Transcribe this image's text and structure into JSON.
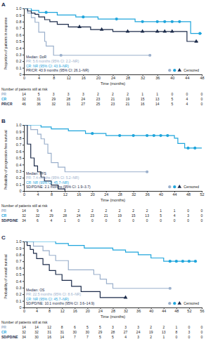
{
  "chart_data": [
    {
      "type": "line",
      "title": "A",
      "ylabel": "Proportion of patients in response",
      "xlabel": "Time (months)",
      "at_risk_title": "Number of patients still at risk",
      "median_title": "Median: DoR",
      "censor_label": "Censored",
      "legend": "bottom-right",
      "xlim": [
        0,
        48
      ],
      "xticks": [
        0,
        4,
        8,
        12,
        16,
        20,
        24,
        28,
        32,
        36,
        40,
        44,
        48
      ],
      "ylim": [
        0,
        1
      ],
      "yticks": [
        0,
        0.1,
        0.2,
        0.3,
        0.4,
        0.5,
        0.6,
        0.7,
        0.8,
        0.9,
        {
          "value": 1,
          "label": "1.0"
        }
      ],
      "series": [
        {
          "name": "PR",
          "color": "#9bb0cc",
          "marker": "circle",
          "annotation": "PR: 5.6 months (95% CI: 2.2–NR)",
          "x": [
            0,
            1,
            2,
            3,
            4,
            5.6,
            6,
            8,
            34
          ],
          "values": [
            1,
            0.93,
            0.86,
            0.79,
            0.64,
            0.5,
            0.43,
            0.29,
            0.29
          ],
          "censor_x": [
            10,
            34
          ],
          "censor_values": [
            0.29,
            0.29
          ],
          "at_risk": [
            14,
            5,
            3,
            3,
            3,
            2,
            2,
            2,
            1,
            1,
            0,
            0,
            0
          ]
        },
        {
          "name": "CR",
          "color": "#1fa5dc",
          "marker": "circle",
          "annotation": "CR: NR (95% CI: 43.9–NR)",
          "x": [
            0,
            2,
            4,
            9,
            14,
            20,
            30,
            45,
            48
          ],
          "values": [
            1,
            0.97,
            0.94,
            0.9,
            0.87,
            0.84,
            0.8,
            0.62,
            0.62
          ],
          "censor_x": [
            6,
            16,
            25,
            32,
            36,
            38,
            40,
            42,
            47.5
          ],
          "censor_values": [
            0.94,
            0.87,
            0.84,
            0.8,
            0.8,
            0.8,
            0.8,
            0.8,
            0.62
          ],
          "at_risk": [
            32,
            31,
            29,
            28,
            24,
            23,
            21,
            19,
            15,
            13,
            5,
            4,
            0
          ]
        },
        {
          "name": "PR/CR",
          "color": "#1c2b4a",
          "marker": "triangle",
          "annotation": "PR/CR: 43.9 months (95% CI: 26.1–NR)",
          "x": [
            0,
            1,
            2,
            3,
            4,
            5.6,
            7,
            9,
            12,
            18,
            24,
            44,
            47
          ],
          "values": [
            1,
            0.96,
            0.93,
            0.91,
            0.87,
            0.83,
            0.8,
            0.76,
            0.72,
            0.68,
            0.65,
            0.5,
            0.5
          ],
          "censor_x": [
            15,
            21,
            28,
            32,
            36,
            38,
            40,
            46.5
          ],
          "censor_values": [
            0.72,
            0.68,
            0.65,
            0.65,
            0.65,
            0.65,
            0.65,
            0.5
          ],
          "at_risk": [
            46,
            36,
            32,
            31,
            27,
            25,
            23,
            21,
            16,
            14,
            5,
            4,
            0
          ]
        }
      ]
    },
    {
      "type": "line",
      "title": "B",
      "ylabel": "Probability of progression-free survival",
      "xlabel": "Time (months)",
      "at_risk_title": "Number of patients still at risk",
      "median_title": "Median: PFS",
      "censor_label": "Censored",
      "legend": "bottom-right",
      "xlim": [
        0,
        52
      ],
      "xticks": [
        0,
        4,
        8,
        12,
        16,
        20,
        24,
        28,
        32,
        36,
        40,
        44,
        48,
        52
      ],
      "ylim": [
        0,
        1
      ],
      "yticks": [
        0,
        0.1,
        0.2,
        0.3,
        0.4,
        0.5,
        0.6,
        0.7,
        0.8,
        0.9,
        {
          "value": 1,
          "label": "1.0"
        }
      ],
      "series": [
        {
          "name": "PR",
          "color": "#9bb0cc",
          "marker": "circle",
          "annotation": "PR: 7.4 months (95% CI: 5.2–NR)",
          "x": [
            0,
            2,
            4,
            5,
            6,
            7,
            8,
            10,
            12,
            36
          ],
          "values": [
            1,
            0.93,
            0.86,
            0.79,
            0.71,
            0.57,
            0.43,
            0.36,
            0.29,
            0.29
          ],
          "censor_x": [
            36
          ],
          "censor_values": [
            0.29
          ],
          "at_risk": [
            14,
            9,
            4,
            3,
            2,
            2,
            2,
            2,
            2,
            2,
            1,
            1,
            0,
            0
          ]
        },
        {
          "name": "CR",
          "color": "#1fa5dc",
          "marker": "circle",
          "annotation": "CR: NR (95% CI: 45.7–NR)",
          "x": [
            0,
            5,
            8,
            13,
            18,
            24,
            44,
            45,
            47,
            52
          ],
          "values": [
            1,
            0.97,
            0.94,
            0.91,
            0.87,
            0.84,
            0.8,
            0.72,
            0.65,
            0.65
          ],
          "censor_x": [
            20,
            28,
            32,
            36,
            38,
            40,
            42,
            48,
            50
          ],
          "censor_values": [
            0.87,
            0.84,
            0.84,
            0.84,
            0.84,
            0.84,
            0.84,
            0.65,
            0.65
          ],
          "at_risk": [
            32,
            32,
            29,
            28,
            24,
            23,
            21,
            19,
            15,
            13,
            5,
            4,
            3,
            0
          ]
        },
        {
          "name": "SD/PD/NE",
          "color": "#1c2b4a",
          "marker": "triangle",
          "annotation": "SD/PD/NE: 2.1 months (95% CI: 1.9–3.7)",
          "x": [
            0,
            1,
            2,
            3,
            4,
            5,
            6,
            8,
            10,
            12
          ],
          "values": [
            1,
            0.71,
            0.5,
            0.38,
            0.29,
            0.21,
            0.15,
            0.09,
            0.03,
            0
          ],
          "censor_x": [],
          "censor_values": [],
          "at_risk": [
            34,
            6,
            4,
            1,
            0,
            0,
            0,
            0,
            0,
            0,
            0,
            0,
            0,
            0
          ]
        }
      ]
    },
    {
      "type": "line",
      "title": "C",
      "ylabel": "Probability of overall survival",
      "xlabel": "Time (months)",
      "at_risk_title": "Number of patients still at risk",
      "median_title": "Median: OS",
      "censor_label": "Censored",
      "legend": "bottom-right",
      "xlim": [
        0,
        56
      ],
      "xticks": [
        0,
        4,
        8,
        12,
        16,
        20,
        24,
        28,
        32,
        36,
        40,
        44,
        48,
        52,
        56
      ],
      "ylim": [
        0,
        1
      ],
      "yticks": [
        0,
        0.1,
        0.2,
        0.3,
        0.4,
        0.5,
        0.6,
        0.7,
        0.8,
        0.9,
        {
          "value": 1,
          "label": "1.0"
        }
      ],
      "series": [
        {
          "name": "PR",
          "color": "#9bb0cc",
          "marker": "circle",
          "annotation": "PR: 22.5 months (95% CI: 8.6–NR)",
          "x": [
            0,
            3,
            6,
            8,
            10,
            14,
            22,
            24,
            26,
            28,
            46
          ],
          "values": [
            1,
            0.93,
            0.86,
            0.79,
            0.71,
            0.57,
            0.5,
            0.43,
            0.36,
            0.29,
            0.29
          ],
          "censor_x": [
            46
          ],
          "censor_values": [
            0.29
          ],
          "at_risk": [
            14,
            14,
            12,
            8,
            6,
            5,
            5,
            3,
            3,
            3,
            2,
            2,
            1,
            0,
            0
          ]
        },
        {
          "name": "CR",
          "color": "#1fa5dc",
          "marker": "circle",
          "annotation": "CR: NR (95% CI: 45.7–NR)",
          "x": [
            0,
            10,
            14,
            19,
            28,
            32,
            36,
            40,
            44,
            54
          ],
          "values": [
            1,
            0.97,
            0.94,
            0.9,
            0.87,
            0.84,
            0.8,
            0.75,
            0.7,
            0.7
          ],
          "censor_x": [
            46,
            48,
            50,
            52,
            54
          ],
          "censor_values": [
            0.7,
            0.7,
            0.7,
            0.7,
            0.7
          ],
          "at_risk": [
            32,
            32,
            31,
            31,
            30,
            30,
            29,
            28,
            27,
            24,
            19,
            13,
            8,
            3,
            0
          ]
        },
        {
          "name": "SD/PD/NE",
          "color": "#1c2b4a",
          "marker": "triangle",
          "annotation": "SD/PD/NE: 10.1 months (95% CI: 3.6–14.9)",
          "x": [
            0,
            1,
            2,
            3,
            4,
            6,
            8,
            10,
            12,
            15,
            18,
            24,
            32
          ],
          "values": [
            1,
            0.94,
            0.88,
            0.82,
            0.74,
            0.65,
            0.56,
            0.5,
            0.41,
            0.32,
            0.24,
            0.15,
            0.15
          ],
          "censor_x": [
            32
          ],
          "censor_values": [
            0.15
          ],
          "at_risk": [
            34,
            30,
            16,
            14,
            7,
            7,
            5,
            5,
            4,
            3,
            2,
            1,
            0,
            0,
            0
          ]
        }
      ]
    }
  ]
}
